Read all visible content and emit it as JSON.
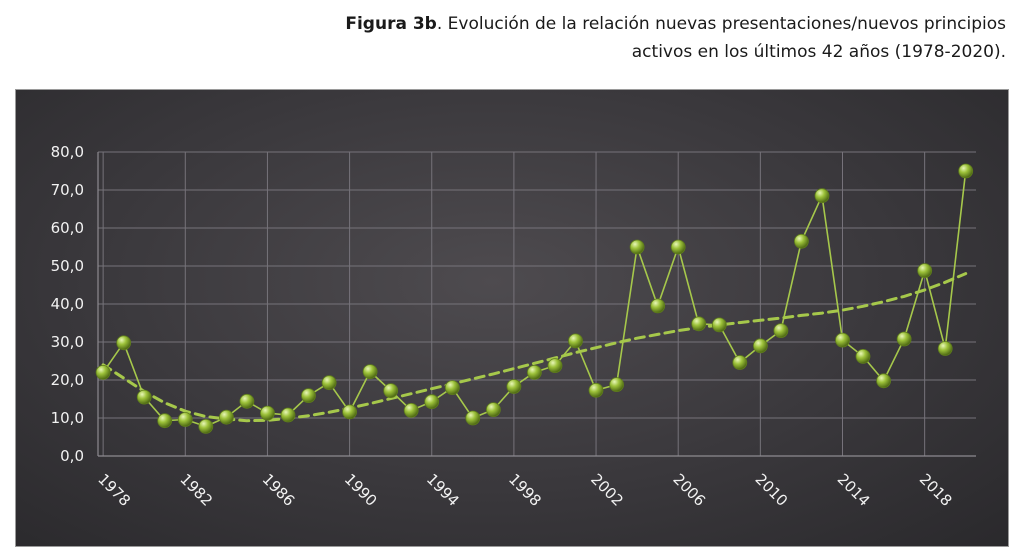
{
  "caption": {
    "lead": "Figura 3b",
    "text": ". Evolución de la relación nuevas presentaciones/nuevos principios activos en los últimos 42 años (1978-2020)."
  },
  "chart_data": {
    "type": "line",
    "title": "",
    "xlabel": "",
    "ylabel": "",
    "ylim": [
      0,
      80
    ],
    "xlim": [
      1977.75,
      2020.5
    ],
    "grid": true,
    "legend": "none",
    "y_ticks": [
      "0,0",
      "10,0",
      "20,0",
      "30,0",
      "40,0",
      "50,0",
      "60,0",
      "70,0",
      "80,0"
    ],
    "x_ticks": [
      "1978",
      "1982",
      "1986",
      "1990",
      "1994",
      "1998",
      "2002",
      "2006",
      "2010",
      "2014",
      "2018"
    ],
    "x": [
      1978,
      1979,
      1980,
      1981,
      1982,
      1983,
      1984,
      1985,
      1986,
      1987,
      1988,
      1989,
      1990,
      1991,
      1992,
      1993,
      1994,
      1995,
      1996,
      1997,
      1998,
      1999,
      2000,
      2001,
      2002,
      2003,
      2004,
      2005,
      2006,
      2007,
      2008,
      2009,
      2010,
      2011,
      2012,
      2013,
      2014,
      2015,
      2016,
      2017,
      2018,
      2019,
      2020
    ],
    "series": [
      {
        "style": "solid-with-markers",
        "values": [
          22.0,
          29.8,
          15.5,
          9.3,
          9.6,
          7.8,
          10.2,
          14.4,
          11.3,
          10.8,
          15.9,
          19.3,
          11.6,
          22.2,
          17.2,
          12.0,
          14.3,
          18.0,
          10.0,
          12.2,
          18.3,
          22.0,
          23.8,
          30.3,
          17.3,
          18.8,
          55.0,
          39.5,
          55.0,
          34.8,
          34.5,
          24.6,
          29.0,
          33.0,
          56.5,
          68.5,
          30.5,
          26.2,
          19.8,
          30.8,
          48.8,
          28.3,
          75.0
        ]
      },
      {
        "style": "dashed-trend",
        "values": [
          24.0,
          20.5,
          17.0,
          14.0,
          11.8,
          10.4,
          9.7,
          9.3,
          9.4,
          9.9,
          10.6,
          11.5,
          12.6,
          13.8,
          15.1,
          16.4,
          17.7,
          19.0,
          20.3,
          21.6,
          23.0,
          24.4,
          25.8,
          27.2,
          28.5,
          29.8,
          31.0,
          32.0,
          33.0,
          33.8,
          34.5,
          35.1,
          35.7,
          36.3,
          37.0,
          37.6,
          38.4,
          39.4,
          40.6,
          42.0,
          43.7,
          45.7,
          48.0
        ]
      }
    ],
    "colors": {
      "line": "#a6c84b",
      "marker_fill": "#9dc23a",
      "marker_highlight": "#dff0a8",
      "grid": "#76737a",
      "tick_text": "#f2f2f2"
    }
  }
}
